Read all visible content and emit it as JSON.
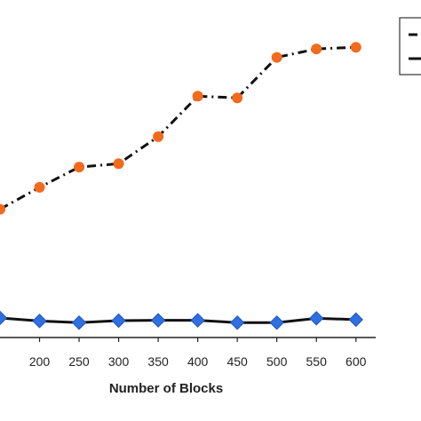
{
  "chart_data": {
    "type": "line",
    "title": "",
    "xlabel": "Number of Blocks",
    "ylabel": "",
    "x": [
      150,
      200,
      250,
      300,
      350,
      400,
      450,
      500,
      550,
      600
    ],
    "xlim": [
      150,
      625
    ],
    "ylim": [
      0,
      100
    ],
    "x_tick_labels": [
      "200",
      "250",
      "300",
      "350",
      "400",
      "450",
      "500",
      "550",
      "600"
    ],
    "grid": false,
    "legend": "top-right",
    "series": [
      {
        "marker": "circle",
        "line_style": "dash-dot",
        "color": "#f26b1d",
        "line_color": "#111111",
        "values": [
          38,
          44.5,
          50.5,
          51.5,
          59.5,
          71.5,
          71,
          83,
          85.5,
          86
        ]
      },
      {
        "marker": "diamond",
        "line_style": "solid",
        "color": "#2f6fe0",
        "line_color": "#111111",
        "values": [
          5.8,
          4.9,
          4.4,
          5.0,
          5.1,
          5.1,
          4.4,
          4.4,
          5.7,
          5.3
        ]
      }
    ]
  }
}
